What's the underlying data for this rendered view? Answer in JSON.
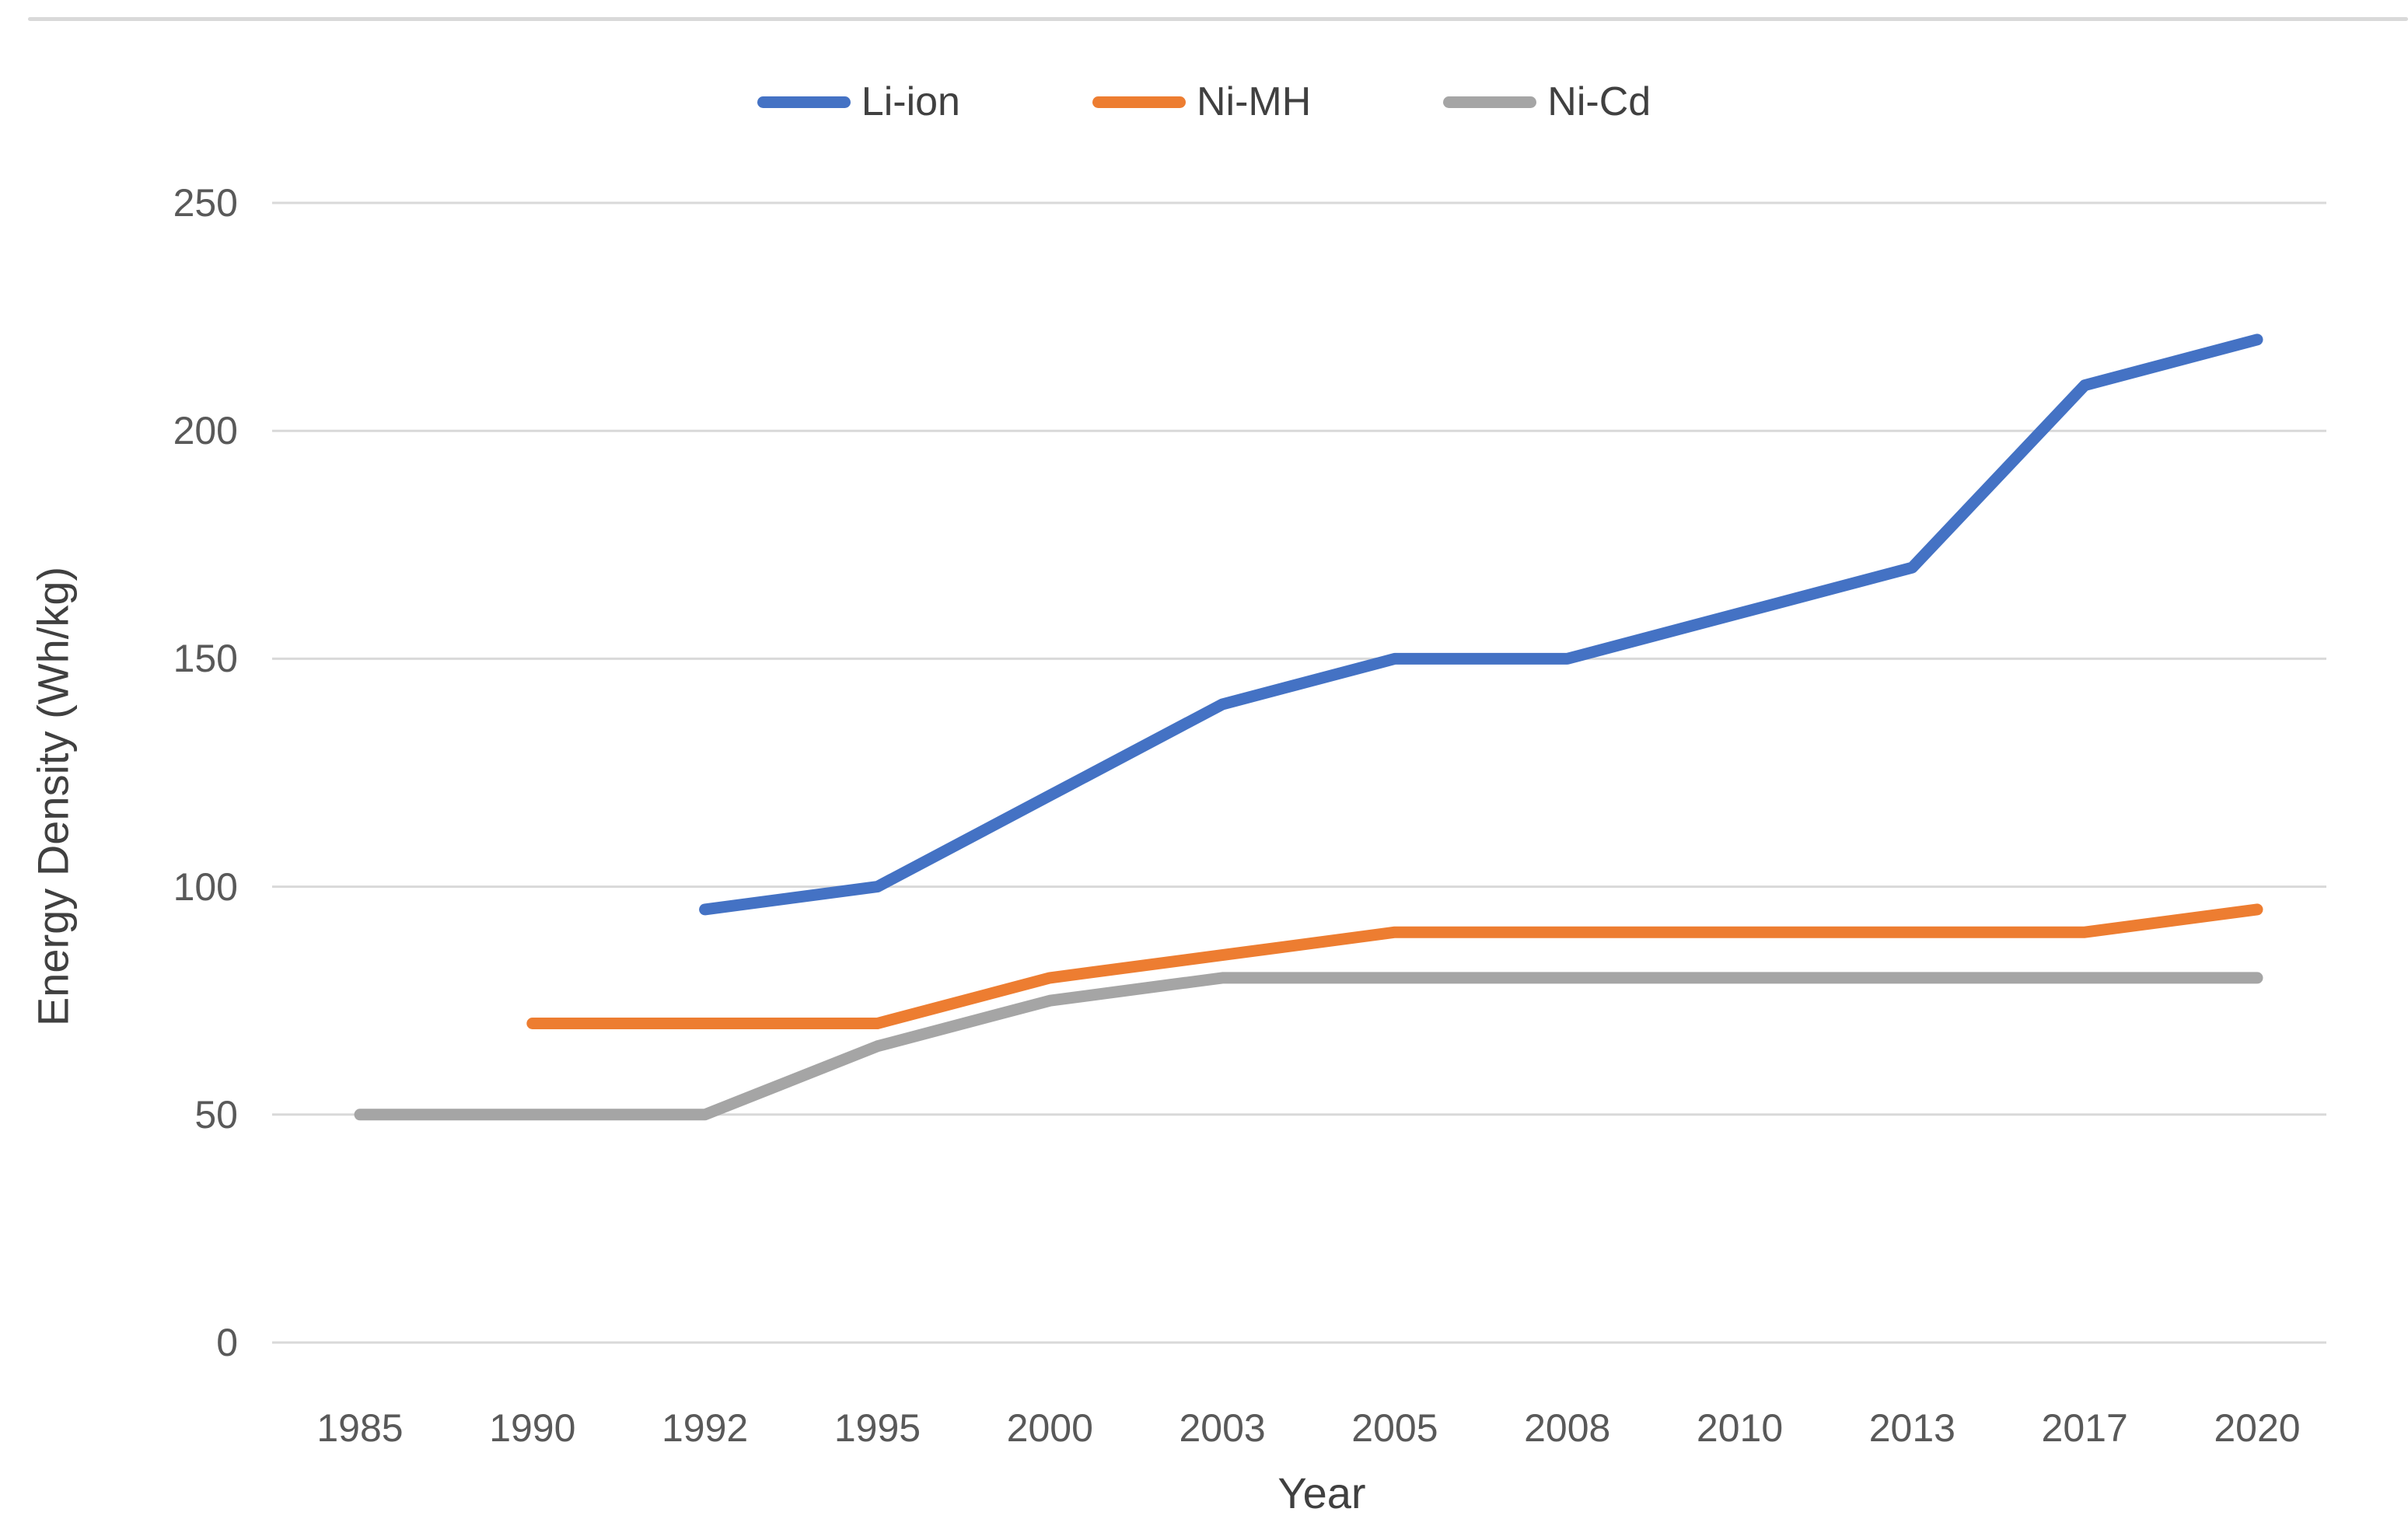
{
  "chart_data": {
    "type": "line",
    "title": "",
    "xlabel": "Year",
    "ylabel": "Energy Density (Wh/kg)",
    "categories": [
      "1985",
      "1990",
      "1992",
      "1995",
      "2000",
      "2003",
      "2005",
      "2008",
      "2010",
      "2013",
      "2017",
      "2020"
    ],
    "series": [
      {
        "name": "Li-ion",
        "color": "#4472C4",
        "values": [
          null,
          null,
          95,
          100,
          120,
          140,
          150,
          150,
          160,
          170,
          210,
          220
        ]
      },
      {
        "name": "Ni-MH",
        "color": "#ED7D31",
        "values": [
          null,
          70,
          70,
          70,
          80,
          85,
          90,
          90,
          90,
          90,
          90,
          95
        ]
      },
      {
        "name": "Ni-Cd",
        "color": "#A5A5A5",
        "values": [
          50,
          50,
          50,
          65,
          75,
          80,
          80,
          80,
          80,
          80,
          80,
          80
        ]
      }
    ],
    "ylim": [
      0,
      250
    ],
    "yticks": [
      0,
      50,
      100,
      150,
      200,
      250
    ],
    "grid": true,
    "gridline_color": "#d9d9d9",
    "tick_text_color": "#595959",
    "axis_title_color": "#404040",
    "legend_position": "top-center"
  }
}
